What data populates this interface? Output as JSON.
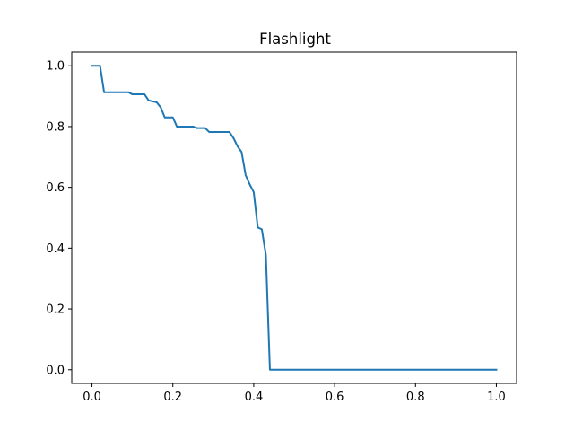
{
  "colors": {
    "series_line": "#1f77b4",
    "axes": "#000000",
    "background": "#ffffff"
  },
  "chart_data": {
    "type": "line",
    "title": "Flashlight",
    "xlabel": "",
    "ylabel": "",
    "xlim": [
      -0.05,
      1.05
    ],
    "ylim": [
      -0.045,
      1.045
    ],
    "grid": false,
    "legend": "none",
    "x_ticks": [
      {
        "value": 0.0,
        "label": "0.0"
      },
      {
        "value": 0.2,
        "label": "0.2"
      },
      {
        "value": 0.4,
        "label": "0.4"
      },
      {
        "value": 0.6,
        "label": "0.6"
      },
      {
        "value": 0.8,
        "label": "0.8"
      },
      {
        "value": 1.0,
        "label": "1.0"
      }
    ],
    "y_ticks": [
      {
        "value": 0.0,
        "label": "0.0"
      },
      {
        "value": 0.2,
        "label": "0.2"
      },
      {
        "value": 0.4,
        "label": "0.4"
      },
      {
        "value": 0.6,
        "label": "0.6"
      },
      {
        "value": 0.8,
        "label": "0.8"
      },
      {
        "value": 1.0,
        "label": "1.0"
      }
    ],
    "series": [
      {
        "x": [
          0.0,
          0.02,
          0.03,
          0.04,
          0.06,
          0.08,
          0.09,
          0.1,
          0.12,
          0.13,
          0.14,
          0.15,
          0.16,
          0.17,
          0.18,
          0.19,
          0.2,
          0.21,
          0.22,
          0.24,
          0.25,
          0.26,
          0.28,
          0.29,
          0.3,
          0.32,
          0.33,
          0.34,
          0.35,
          0.36,
          0.37,
          0.38,
          0.39,
          0.4,
          0.41,
          0.42,
          0.43,
          0.44,
          0.45,
          0.5,
          0.6,
          0.7,
          0.8,
          0.9,
          1.0
        ],
        "y": [
          1.0,
          1.0,
          0.913,
          0.913,
          0.913,
          0.913,
          0.913,
          0.906,
          0.906,
          0.906,
          0.886,
          0.883,
          0.88,
          0.863,
          0.83,
          0.83,
          0.83,
          0.8,
          0.8,
          0.8,
          0.8,
          0.795,
          0.795,
          0.782,
          0.782,
          0.782,
          0.782,
          0.782,
          0.762,
          0.735,
          0.716,
          0.64,
          0.61,
          0.584,
          0.468,
          0.462,
          0.378,
          0.0,
          0.0,
          0.0,
          0.0,
          0.0,
          0.0,
          0.0,
          0.0
        ]
      }
    ]
  }
}
